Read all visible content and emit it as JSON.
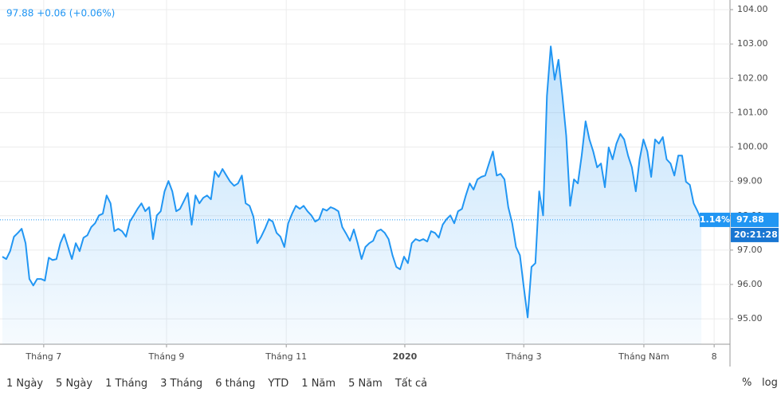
{
  "chart_data": {
    "type": "line",
    "header": "97.88 +0.06 (+0.06%)",
    "color": "#2196f3",
    "values": [
      96.81,
      96.74,
      96.97,
      97.39,
      97.5,
      97.62,
      97.2,
      96.16,
      95.97,
      96.16,
      96.16,
      96.11,
      96.78,
      96.71,
      96.74,
      97.2,
      97.46,
      97.09,
      96.74,
      97.2,
      96.97,
      97.36,
      97.43,
      97.67,
      97.78,
      98.01,
      98.06,
      98.59,
      98.36,
      97.55,
      97.62,
      97.55,
      97.39,
      97.83,
      98.01,
      98.2,
      98.36,
      98.13,
      98.25,
      97.32,
      98.01,
      98.13,
      98.71,
      99.01,
      98.71,
      98.13,
      98.2,
      98.43,
      98.66,
      97.74,
      98.59,
      98.36,
      98.52,
      98.59,
      98.48,
      99.29,
      99.13,
      99.36,
      99.17,
      98.99,
      98.87,
      98.94,
      99.17,
      98.36,
      98.29,
      97.97,
      97.2,
      97.39,
      97.62,
      97.9,
      97.83,
      97.5,
      97.39,
      97.09,
      97.78,
      98.06,
      98.29,
      98.2,
      98.29,
      98.13,
      98.01,
      97.83,
      97.9,
      98.2,
      98.15,
      98.25,
      98.2,
      98.13,
      97.67,
      97.48,
      97.27,
      97.6,
      97.2,
      96.74,
      97.09,
      97.2,
      97.27,
      97.55,
      97.6,
      97.5,
      97.32,
      96.85,
      96.51,
      96.44,
      96.81,
      96.62,
      97.2,
      97.32,
      97.27,
      97.32,
      97.25,
      97.55,
      97.5,
      97.36,
      97.74,
      97.9,
      98.01,
      97.78,
      98.13,
      98.2,
      98.59,
      98.94,
      98.76,
      99.06,
      99.13,
      99.17,
      99.52,
      99.87,
      99.17,
      99.22,
      99.06,
      98.25,
      97.78,
      97.09,
      96.85,
      95.93,
      95.04,
      96.51,
      96.62,
      98.71,
      98.01,
      101.49,
      102.93,
      101.96,
      102.54,
      101.49,
      100.33,
      98.29,
      99.06,
      98.94,
      99.75,
      100.75,
      100.22,
      99.87,
      99.41,
      99.52,
      98.83,
      99.99,
      99.64,
      100.1,
      100.38,
      100.22,
      99.75,
      99.41,
      98.71,
      99.64,
      100.22,
      99.87,
      99.13,
      100.22,
      100.1,
      100.29,
      99.64,
      99.52,
      99.17,
      99.75,
      99.75,
      98.99,
      98.9,
      98.36,
      98.13,
      97.88
    ],
    "xlim": [
      -0.62,
      188.4
    ],
    "xticks": [
      {
        "value": 10.7,
        "label": "Tháng 7"
      },
      {
        "value": 42.5,
        "label": "Tháng 9"
      },
      {
        "value": 73.5,
        "label": "Tháng 11"
      },
      {
        "value": 104.2,
        "label": "2020"
      },
      {
        "value": 135,
        "label": "Tháng 3"
      },
      {
        "value": 166.1,
        "label": "Tháng Năm"
      },
      {
        "value": 184.3,
        "label": "8"
      }
    ],
    "bold_xtick": "2020",
    "ylim": [
      94.26,
      104.28
    ],
    "yticks": [
      {
        "value": 95,
        "label": "95.00"
      },
      {
        "value": 96,
        "label": "96.00"
      },
      {
        "value": 97,
        "label": "97.00"
      },
      {
        "value": 98,
        "label": "98.00"
      },
      {
        "value": 99,
        "label": "99.00"
      },
      {
        "value": 100,
        "label": "100.00"
      },
      {
        "value": 101,
        "label": "101.00"
      },
      {
        "value": 102,
        "label": "102.00"
      },
      {
        "value": 103,
        "label": "103.00"
      },
      {
        "value": 104,
        "label": "104.00"
      }
    ],
    "grid": true,
    "change_label": "1.14%",
    "countdown": "20:21:28",
    "ranges": [
      "1 Ngày",
      "5 Ngày",
      "1 Tháng",
      "3 Tháng",
      "6 tháng",
      "YTD",
      "1 Năm",
      "5 Năm",
      "Tất cả"
    ],
    "scale_options": [
      "%",
      "log"
    ]
  }
}
